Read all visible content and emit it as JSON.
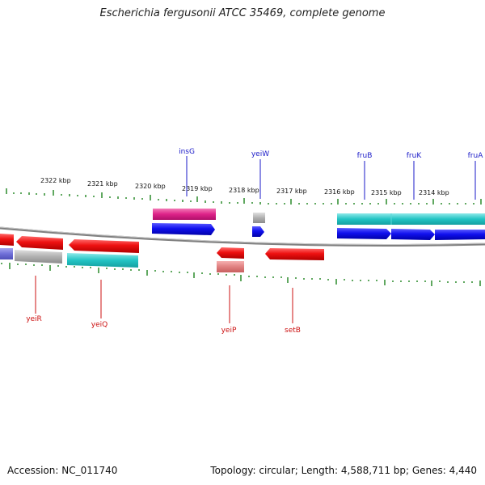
{
  "title": "Escherichia fergusonii ATCC 35469, complete genome",
  "footer": {
    "accession": "Accession: NC_011740",
    "summary": "Topology: circular; Length: 4,588,711 bp; Genes: 4,440"
  },
  "kbp_labels": [
    "2322 kbp",
    "2321 kbp",
    "2320 kbp",
    "2319 kbp",
    "2318 kbp",
    "2317 kbp",
    "2316 kbp",
    "2315 kbp",
    "2314 kbp"
  ],
  "genes_top": [
    {
      "name": "insG",
      "color": "#1a1ac8"
    },
    {
      "name": "yeiW",
      "color": "#1a1ac8"
    },
    {
      "name": "fruB",
      "color": "#1a1ac8"
    },
    {
      "name": "fruK",
      "color": "#1a1ac8"
    },
    {
      "name": "fruA",
      "color": "#1a1ac8"
    }
  ],
  "genes_bottom": [
    {
      "name": "yeiR",
      "color": "#cc1111"
    },
    {
      "name": "yeiQ",
      "color": "#cc1111"
    },
    {
      "name": "yeiP",
      "color": "#cc1111"
    },
    {
      "name": "setB",
      "color": "#cc1111"
    }
  ],
  "colors": {
    "cds_forward": "#1010ee",
    "cds_reverse": "#ee1010",
    "gene_teal": "#22c4c4",
    "gene_magenta": "#dd2288",
    "pseudo_gray": "#b0b0b0",
    "tick": "#2a8a2a",
    "backbone": "#808080"
  }
}
